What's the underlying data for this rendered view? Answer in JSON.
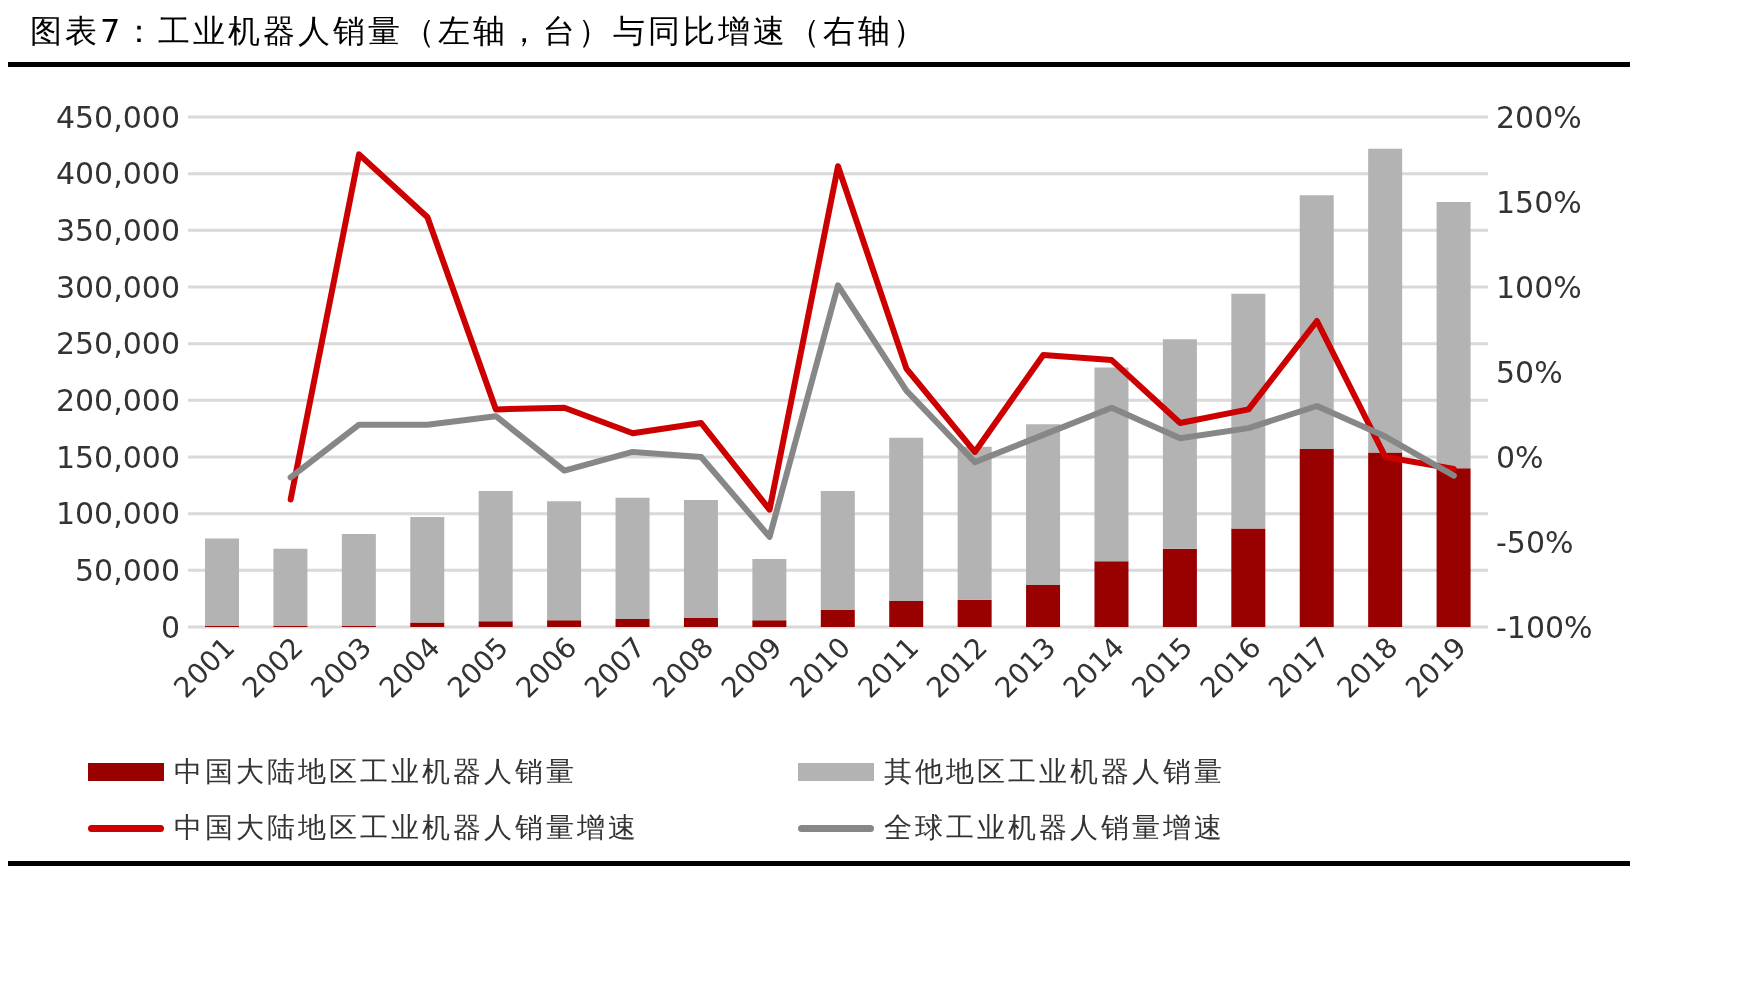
{
  "chart_data": {
    "type": "bar",
    "title": "图表7：工业机器人销量（左轴，台）与同比增速（右轴）",
    "categories": [
      "2001",
      "2002",
      "2003",
      "2004",
      "2005",
      "2006",
      "2007",
      "2008",
      "2009",
      "2010",
      "2011",
      "2012",
      "2013",
      "2014",
      "2015",
      "2016",
      "2017",
      "2018",
      "2019"
    ],
    "stacked": true,
    "legend": "bottom",
    "grid": "y",
    "series": [
      {
        "name": "中国大陆地区工业机器人销量",
        "color": "#990000",
        "values": [
          1000,
          1000,
          1000,
          4000,
          5000,
          6000,
          7000,
          8000,
          6000,
          15000,
          23000,
          24000,
          37000,
          58000,
          69000,
          87000,
          157000,
          154000,
          140000
        ]
      },
      {
        "name": "其他地区工业机器人销量",
        "color": "#b3b3b3",
        "values": [
          77000,
          68000,
          81000,
          93000,
          115000,
          105000,
          107000,
          104000,
          54000,
          105000,
          144000,
          135000,
          142000,
          171000,
          185000,
          207000,
          224000,
          268000,
          235000
        ]
      },
      {
        "name": "中国大陆地区工业机器人销量增速",
        "type": "line",
        "axis": "y2",
        "color": "#cc0000",
        "values": [
          null,
          -25,
          178,
          141,
          28,
          29,
          14,
          20,
          -31,
          171,
          52,
          3,
          60,
          57,
          20,
          28,
          80,
          0,
          -7
        ]
      },
      {
        "name": "全球工业机器人销量增速",
        "type": "line",
        "axis": "y2",
        "color": "#878787",
        "values": [
          null,
          -12,
          19,
          19,
          24,
          -8,
          3,
          0,
          -47,
          101,
          39,
          -3,
          13,
          29,
          11,
          17,
          30,
          12,
          -11
        ]
      }
    ],
    "ylim": [
      0,
      450000
    ],
    "yticks": [
      {
        "value": 0,
        "label": "0"
      },
      {
        "value": 50000,
        "label": "50,000"
      },
      {
        "value": 100000,
        "label": "100,000"
      },
      {
        "value": 150000,
        "label": "150,000"
      },
      {
        "value": 200000,
        "label": "200,000"
      },
      {
        "value": 250000,
        "label": "250,000"
      },
      {
        "value": 300000,
        "label": "300,000"
      },
      {
        "value": 350000,
        "label": "350,000"
      },
      {
        "value": 400000,
        "label": "400,000"
      },
      {
        "value": 450000,
        "label": "450,000"
      }
    ],
    "y2lim": [
      -100,
      200
    ],
    "y2ticks": [
      {
        "value": -100,
        "label": "-100%"
      },
      {
        "value": -50,
        "label": "-50%"
      },
      {
        "value": 0,
        "label": "0%"
      },
      {
        "value": 50,
        "label": "50%"
      },
      {
        "value": 100,
        "label": "100%"
      },
      {
        "value": 150,
        "label": "150%"
      },
      {
        "value": 200,
        "label": "200%"
      }
    ],
    "marker": "none",
    "line_style": "solid"
  }
}
